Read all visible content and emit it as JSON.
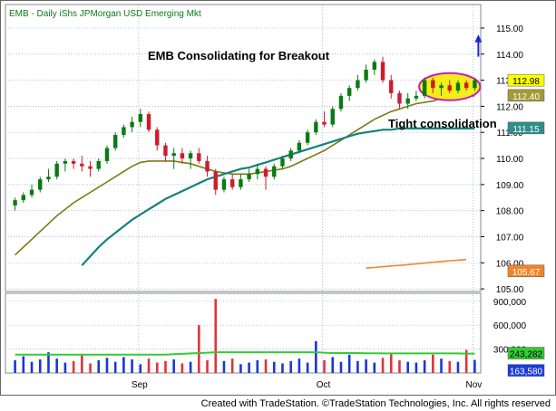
{
  "header": {
    "symbol": "EMB",
    "interval": "Daily",
    "description": "iShs JPMorgan USD Emerging Mkt"
  },
  "annotations": {
    "title": "EMB Consolidating for Breakout",
    "note": "Tight consolidation"
  },
  "footer": {
    "credit": "Created with TradeStation. ©TradeStation Technologies, Inc. All rights reserved"
  },
  "colors": {
    "up": "#0a7a14",
    "down": "#d01b2b",
    "sma_fast": "#7d7a12",
    "sma_slow": "#14817e",
    "sma_200": "#f0852a",
    "volume_up": "#1a37d6",
    "volume_down": "#e0343c",
    "volume_avg": "#33cc33",
    "highlight_fill": "#f3ee1a",
    "highlight_stroke": "#c61fbb",
    "arrow": "#1a2bc8",
    "grid": "#9aa8d6",
    "panel_bg": "#ffffff",
    "label_fast_bg": "#a49a38",
    "label_slow_bg": "#2e8e8a",
    "label_price_bg": "#ffff00",
    "label_200_bg": "#f0852a",
    "label_vol_bg": "#1c3bdc"
  },
  "chart_data": {
    "type": "candlestick",
    "x_labels": [
      "Sep",
      "Oct",
      "Nov"
    ],
    "price_axis": {
      "ticks": [
        105.0,
        106.0,
        107.0,
        108.0,
        109.0,
        110.0,
        111.0,
        112.0,
        113.0,
        114.0,
        115.0
      ],
      "tick_labels": [
        "105.00",
        "106.00",
        "107.00",
        "108.00",
        "109.00",
        "110.00",
        "111.00",
        "112.00",
        "113.00",
        "114.00",
        "115.00"
      ],
      "range": [
        104.9,
        115.9
      ]
    },
    "volume_axis": {
      "tick_labels": [
        "900,000",
        "600,000",
        "300,000"
      ],
      "ticks": [
        900000,
        600000,
        300000
      ],
      "range": [
        0,
        1000000
      ]
    },
    "candles": [
      [
        108.2,
        108.5,
        108.0,
        108.4
      ],
      [
        108.4,
        108.7,
        108.3,
        108.6
      ],
      [
        108.6,
        109.0,
        108.5,
        108.8
      ],
      [
        108.8,
        109.3,
        108.7,
        109.2
      ],
      [
        109.2,
        109.6,
        109.1,
        109.3
      ],
      [
        109.3,
        109.9,
        109.2,
        109.8
      ],
      [
        109.8,
        110.0,
        109.5,
        109.9
      ],
      [
        109.9,
        110.0,
        109.6,
        109.8
      ],
      [
        109.8,
        110.1,
        109.5,
        109.7
      ],
      [
        109.7,
        109.9,
        109.3,
        109.6
      ],
      [
        109.6,
        110.0,
        109.5,
        109.9
      ],
      [
        109.9,
        110.5,
        109.8,
        110.4
      ],
      [
        110.4,
        111.0,
        110.3,
        110.9
      ],
      [
        110.9,
        111.3,
        110.8,
        111.2
      ],
      [
        111.2,
        111.6,
        111.0,
        111.4
      ],
      [
        111.4,
        111.9,
        111.2,
        111.7
      ],
      [
        111.7,
        111.8,
        111.0,
        111.1
      ],
      [
        111.1,
        111.2,
        110.3,
        110.5
      ],
      [
        110.5,
        110.6,
        109.9,
        110.1
      ],
      [
        110.1,
        110.4,
        109.6,
        110.2
      ],
      [
        110.2,
        110.4,
        109.8,
        110.0
      ],
      [
        110.0,
        110.3,
        109.6,
        110.2
      ],
      [
        110.2,
        110.4,
        109.8,
        109.9
      ],
      [
        109.9,
        110.1,
        109.3,
        109.5
      ],
      [
        109.5,
        109.6,
        108.6,
        108.8
      ],
      [
        108.8,
        109.3,
        108.7,
        109.2
      ],
      [
        109.2,
        109.4,
        108.8,
        108.9
      ],
      [
        108.9,
        109.4,
        108.8,
        109.2
      ],
      [
        109.2,
        109.6,
        109.1,
        109.4
      ],
      [
        109.4,
        109.8,
        109.2,
        109.6
      ],
      [
        109.6,
        109.7,
        108.8,
        109.3
      ],
      [
        109.3,
        109.8,
        109.2,
        109.7
      ],
      [
        109.7,
        110.1,
        109.6,
        110.0
      ],
      [
        110.0,
        110.4,
        109.9,
        110.3
      ],
      [
        110.3,
        110.7,
        110.2,
        110.6
      ],
      [
        110.6,
        111.1,
        110.5,
        111.0
      ],
      [
        111.0,
        111.5,
        110.9,
        111.4
      ],
      [
        111.4,
        111.8,
        111.2,
        111.3
      ],
      [
        111.3,
        112.0,
        111.2,
        111.9
      ],
      [
        111.9,
        112.5,
        111.8,
        112.4
      ],
      [
        112.4,
        112.8,
        112.2,
        112.7
      ],
      [
        112.7,
        113.2,
        112.6,
        113.0
      ],
      [
        113.0,
        113.6,
        112.9,
        113.4
      ],
      [
        113.4,
        113.8,
        113.2,
        113.7
      ],
      [
        113.7,
        113.9,
        112.9,
        113.0
      ],
      [
        113.0,
        113.2,
        112.3,
        112.5
      ],
      [
        112.5,
        112.6,
        111.9,
        112.1
      ],
      [
        112.1,
        112.5,
        111.9,
        112.3
      ],
      [
        112.3,
        112.6,
        112.2,
        112.4
      ],
      [
        112.4,
        113.1,
        112.3,
        113.0
      ],
      [
        113.0,
        113.1,
        112.5,
        112.7
      ],
      [
        112.7,
        112.9,
        112.4,
        112.8
      ],
      [
        112.8,
        113.0,
        112.5,
        112.6
      ],
      [
        112.6,
        113.0,
        112.5,
        112.9
      ],
      [
        112.9,
        113.0,
        112.6,
        112.7
      ],
      [
        112.7,
        113.1,
        112.6,
        113.0
      ]
    ],
    "sma_fast_values": [
      106.3,
      106.6,
      106.9,
      107.2,
      107.5,
      107.8,
      108.05,
      108.3,
      108.5,
      108.7,
      108.9,
      109.1,
      109.3,
      109.5,
      109.7,
      109.85,
      109.9,
      109.9,
      109.9,
      109.9,
      109.85,
      109.8,
      109.7,
      109.6,
      109.5,
      109.45,
      109.4,
      109.4,
      109.4,
      109.45,
      109.5,
      109.55,
      109.6,
      109.7,
      109.85,
      110.0,
      110.15,
      110.3,
      110.5,
      110.7,
      110.9,
      111.1,
      111.3,
      111.5,
      111.65,
      111.8,
      111.9,
      112.0,
      112.1,
      112.15,
      112.2,
      112.3,
      112.35,
      112.4,
      112.4,
      112.4
    ],
    "sma_slow_start": 8,
    "sma_slow_values": [
      105.9,
      106.25,
      106.6,
      106.9,
      107.15,
      107.4,
      107.65,
      107.85,
      108.05,
      108.25,
      108.45,
      108.6,
      108.75,
      108.9,
      109.05,
      109.2,
      109.3,
      109.4,
      109.5,
      109.6,
      109.65,
      109.75,
      109.85,
      109.95,
      110.05,
      110.15,
      110.25,
      110.35,
      110.45,
      110.55,
      110.65,
      110.75,
      110.85,
      110.95,
      111.0,
      111.05,
      111.1,
      111.1,
      111.15,
      111.15,
      111.15,
      111.15,
      111.15,
      111.15,
      111.15,
      111.15,
      111.15,
      111.15
    ],
    "sma_200_start": 42,
    "sma_200_values": [
      105.8,
      105.82,
      105.85,
      105.88,
      105.9,
      105.93,
      105.96,
      105.99,
      106.02,
      106.05,
      106.08,
      106.1,
      106.13,
      105.67
    ],
    "volumes": [
      160000,
      210000,
      140000,
      170000,
      260000,
      180000,
      130000,
      150000,
      220000,
      120000,
      160000,
      190000,
      140000,
      200000,
      170000,
      110000,
      180000,
      130000,
      150000,
      170000,
      120000,
      140000,
      600000,
      160000,
      930000,
      150000,
      180000,
      110000,
      130000,
      160000,
      170000,
      140000,
      120000,
      150000,
      180000,
      130000,
      400000,
      160000,
      200000,
      140000,
      230000,
      150000,
      170000,
      130000,
      190000,
      250000,
      160000,
      140000,
      130000,
      160000,
      230000,
      180000,
      150000,
      140000,
      290000,
      163580
    ],
    "volume_avg_values": [
      230000,
      230000,
      230000,
      230000,
      230000,
      230000,
      230000,
      230000,
      230000,
      230000,
      230000,
      230000,
      230000,
      230000,
      230000,
      230000,
      230000,
      230000,
      230000,
      235000,
      240000,
      245000,
      250000,
      255000,
      260000,
      260000,
      260000,
      260000,
      260000,
      260000,
      260000,
      260000,
      260000,
      260000,
      260000,
      260000,
      260000,
      255000,
      250000,
      250000,
      250000,
      250000,
      248000,
      248000,
      245000,
      245000,
      245000,
      245000,
      245000,
      245000,
      245000,
      245000,
      245000,
      245000,
      243282,
      243282
    ],
    "last_values": {
      "price": "112.98",
      "sma_fast": "112.40",
      "sma_slow": "111.15",
      "sma_200": "105.67",
      "volume_avg": "243,282",
      "volume": "163,580"
    }
  }
}
